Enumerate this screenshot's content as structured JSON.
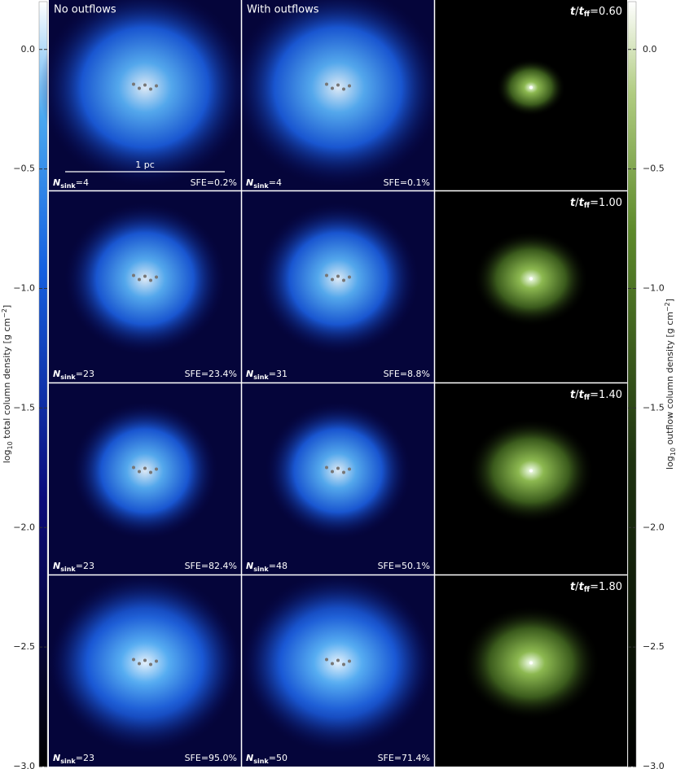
{
  "columns": {
    "left": "No outflows",
    "middle": "With outflows"
  },
  "scale_bar": "1 pc",
  "nsink_symbol": {
    "symbol": "N",
    "subscript": "sink"
  },
  "time_symbol": {
    "symbol": "t",
    "slash": "/",
    "symbol2": "t",
    "subscript": "ff"
  },
  "rows": [
    {
      "time": "=0.60",
      "left": {
        "nsink": "=4",
        "sfe": "SFE=0.2%"
      },
      "middle": {
        "nsink": "=4",
        "sfe": "SFE=0.1%"
      }
    },
    {
      "time": "=1.00",
      "left": {
        "nsink": "=23",
        "sfe": "SFE=23.4%"
      },
      "middle": {
        "nsink": "=31",
        "sfe": "SFE=8.8%"
      }
    },
    {
      "time": "=1.40",
      "left": {
        "nsink": "=23",
        "sfe": "SFE=82.4%"
      },
      "middle": {
        "nsink": "=48",
        "sfe": "SFE=50.1%"
      }
    },
    {
      "time": "=1.80",
      "left": {
        "nsink": "=23",
        "sfe": "SFE=95.0%"
      },
      "middle": {
        "nsink": "=50",
        "sfe": "SFE=71.4%"
      }
    }
  ],
  "colorbars": {
    "left": {
      "label": {
        "log": "log",
        "base": "10",
        "text": " total column density [g cm",
        "exp": "−2",
        "end": "]"
      },
      "lim": [
        -3.0,
        0.2
      ],
      "ticks": [
        {
          "value": -3.0,
          "label": "−3.0"
        },
        {
          "value": -2.5,
          "label": "−2.5"
        },
        {
          "value": -2.0,
          "label": "−2.0"
        },
        {
          "value": -1.5,
          "label": "−1.5"
        },
        {
          "value": -1.0,
          "label": "−1.0"
        },
        {
          "value": -0.5,
          "label": "−0.5"
        },
        {
          "value": 0.0,
          "label": "0.0"
        }
      ]
    },
    "right": {
      "label": {
        "log": "log",
        "base": "10",
        "text": " outflow column density [g cm",
        "exp": "−2",
        "end": "]"
      },
      "lim": [
        -3.0,
        0.2
      ],
      "ticks": [
        {
          "value": -3.0,
          "label": "−3.0"
        },
        {
          "value": -2.5,
          "label": "−2.5"
        },
        {
          "value": -2.0,
          "label": "−2.0"
        },
        {
          "value": -1.5,
          "label": "−1.5"
        },
        {
          "value": -1.0,
          "label": "−1.0"
        },
        {
          "value": -0.5,
          "label": "−0.5"
        },
        {
          "value": 0.0,
          "label": "0.0"
        }
      ]
    }
  }
}
